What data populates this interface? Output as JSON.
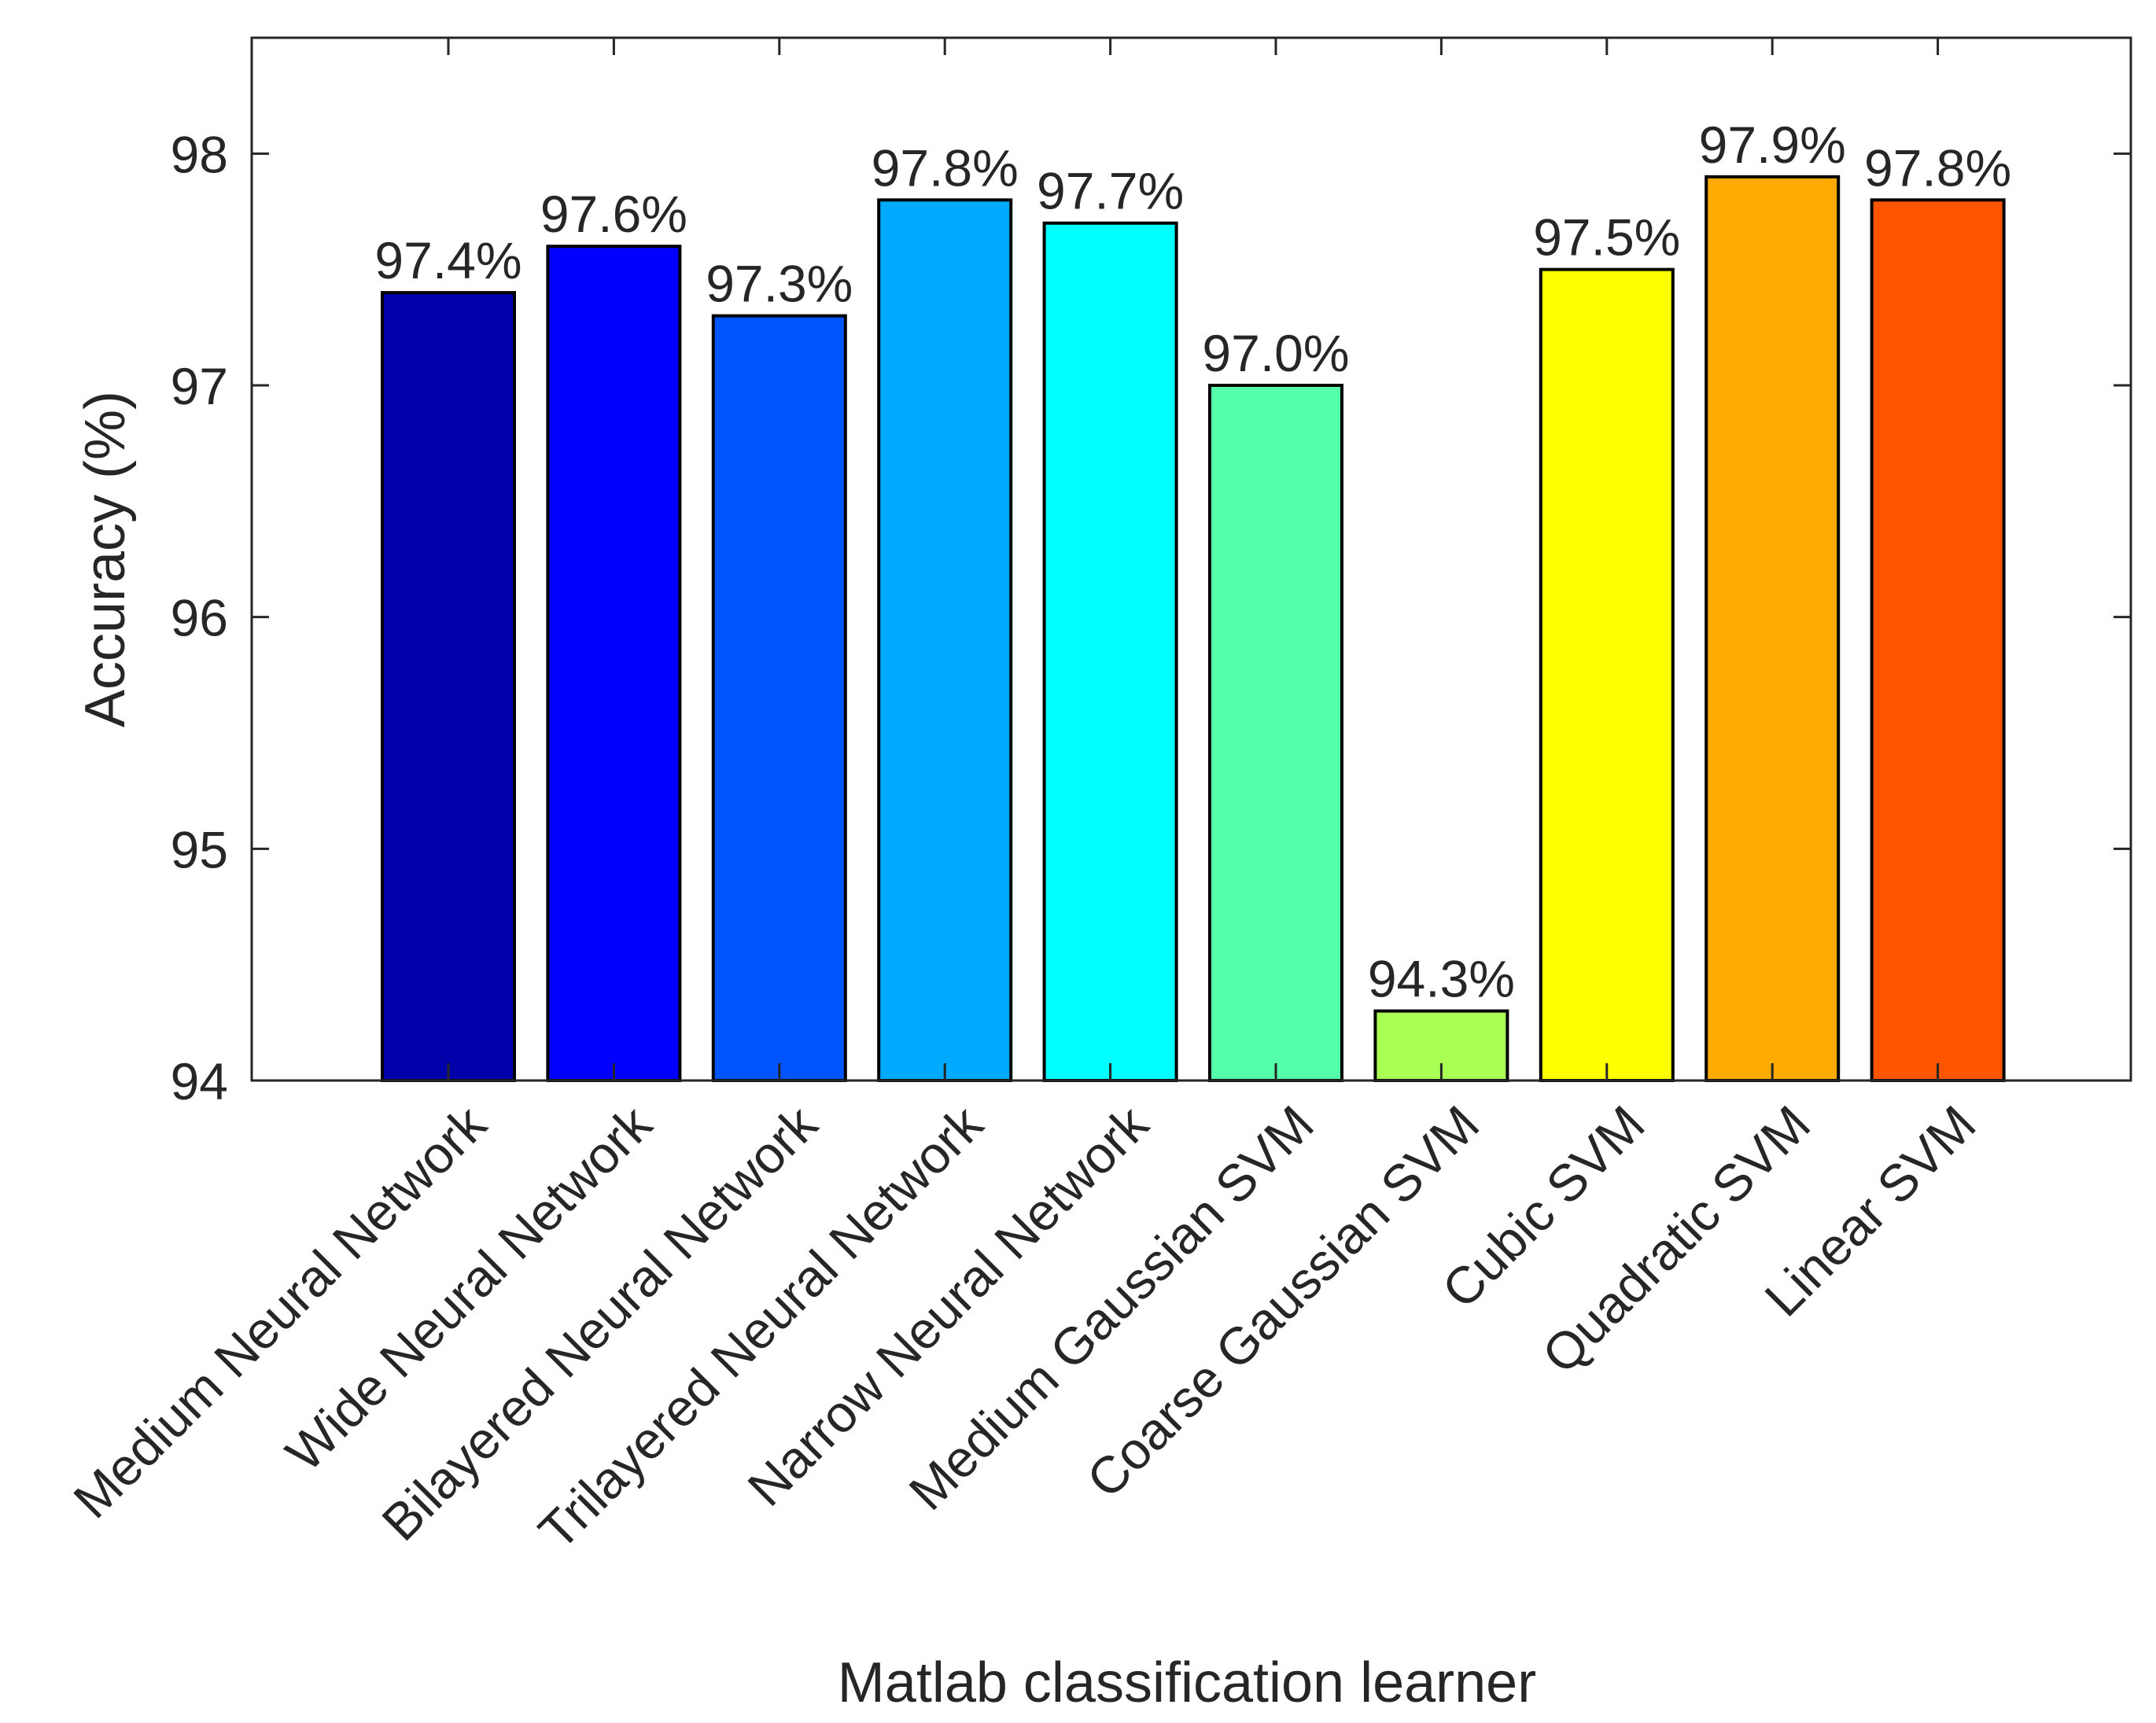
{
  "chart_data": {
    "type": "bar",
    "title": "",
    "xlabel": "Matlab classification learner",
    "ylabel": "Accuracy (%)",
    "ylim": [
      94,
      98.5
    ],
    "yticks": [
      94,
      95,
      96,
      97,
      98
    ],
    "grid": false,
    "categories": [
      "Medium Neural Network",
      "Wide Neural Network",
      "Bilayered Neural Network",
      "Trilayered Neural Network",
      "Narrow Neural Network",
      "Medium Gaussian SVM",
      "Coarse Gaussian SVM",
      "Cubic SVM",
      "Quadratic SVM",
      "Linear SVM"
    ],
    "values": [
      97.4,
      97.6,
      97.3,
      97.8,
      97.7,
      97.0,
      94.3,
      97.5,
      97.9,
      97.8
    ],
    "data_labels": [
      "97.4%",
      "97.6%",
      "97.3%",
      "97.8%",
      "97.7%",
      "97.0%",
      "94.3%",
      "97.5%",
      "97.9%",
      "97.8%"
    ],
    "colors": [
      "#0000aa",
      "#0000ff",
      "#0055ff",
      "#00aaff",
      "#00ffff",
      "#55ffaa",
      "#aaff55",
      "#ffff00",
      "#ffaa00",
      "#ff5500"
    ]
  }
}
